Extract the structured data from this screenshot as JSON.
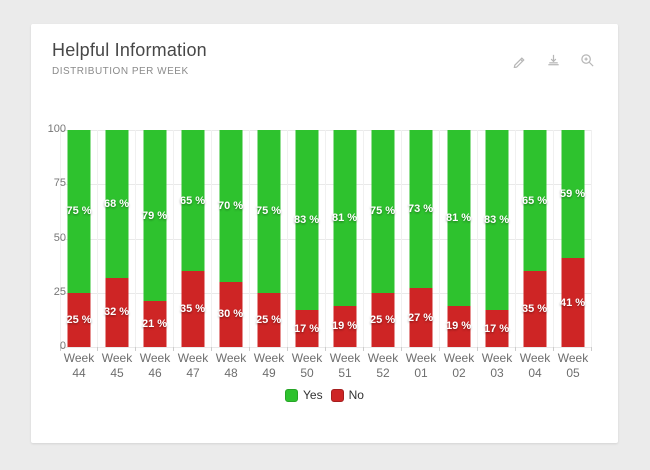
{
  "page": {
    "background": "#ebebeb"
  },
  "header": {
    "title": "Helpful Information",
    "subtitle": "DISTRIBUTION PER WEEK",
    "toolbar": {
      "edit_icon": "pencil-icon",
      "download_icon": "download-icon",
      "zoom_icon": "magnifier-icon"
    }
  },
  "chart_data": {
    "type": "bar",
    "stacked": true,
    "title": "Helpful Information",
    "subtitle": "DISTRIBUTION PER WEEK",
    "categories": [
      "Week 44",
      "Week 45",
      "Week 46",
      "Week 47",
      "Week 48",
      "Week 49",
      "Week 50",
      "Week 51",
      "Week 52",
      "Week 01",
      "Week 02",
      "Week 03",
      "Week 04",
      "Week 05"
    ],
    "series": [
      {
        "name": "Yes",
        "color": "#2ec22e",
        "border": "#27a527",
        "values": [
          75,
          68,
          79,
          65,
          70,
          75,
          83,
          81,
          75,
          73,
          81,
          83,
          65,
          59
        ]
      },
      {
        "name": "No",
        "color": "#ce2525",
        "border": "#a51f1f",
        "values": [
          25,
          32,
          21,
          35,
          30,
          25,
          17,
          19,
          25,
          27,
          19,
          17,
          35,
          41
        ]
      }
    ],
    "value_suffix": " %",
    "xlabel": "",
    "ylabel": "",
    "ylim": [
      0,
      100
    ],
    "yticks": [
      0,
      25,
      50,
      75,
      100
    ],
    "grid": true,
    "legend_position": "bottom"
  }
}
